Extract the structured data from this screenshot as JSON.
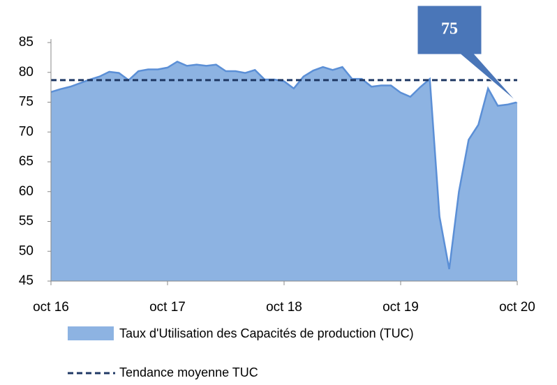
{
  "chart_data": {
    "type": "area",
    "categories": [
      "oct 16",
      null,
      null,
      null,
      null,
      null,
      null,
      null,
      null,
      null,
      null,
      null,
      "oct 17",
      null,
      null,
      null,
      null,
      null,
      null,
      null,
      null,
      null,
      null,
      null,
      "oct 18",
      null,
      null,
      null,
      null,
      null,
      null,
      null,
      null,
      null,
      null,
      null,
      "oct 19",
      null,
      null,
      null,
      null,
      null,
      null,
      null,
      null,
      null,
      null,
      null,
      "oct 20"
    ],
    "series": [
      {
        "name": "Taux d'Utilisation des Capacités de production (TUC)",
        "color": "#8db3e2",
        "line_color": "#5b8fd6",
        "values": [
          76.7,
          77.2,
          77.6,
          78.2,
          78.8,
          79.3,
          80.1,
          79.9,
          78.7,
          80.2,
          80.5,
          80.5,
          80.8,
          81.8,
          81.1,
          81.3,
          81.1,
          81.3,
          80.2,
          80.2,
          79.9,
          80.4,
          78.8,
          78.8,
          78.5,
          77.3,
          79.3,
          80.3,
          80.9,
          80.4,
          80.9,
          78.9,
          78.9,
          77.6,
          77.8,
          77.8,
          76.6,
          75.9,
          77.5,
          78.9,
          55.8,
          47,
          60,
          68.7,
          71.2,
          77.3,
          74.4,
          74.6,
          75
        ]
      }
    ],
    "average": {
      "name": "Tendance moyenne TUC",
      "value": 78.7,
      "color": "#1f3864"
    },
    "annotation": {
      "text": "75",
      "color": "#4a76b8"
    },
    "ylim": [
      45,
      85
    ],
    "yticks": [
      45,
      50,
      55,
      60,
      65,
      70,
      75,
      80,
      85
    ]
  }
}
